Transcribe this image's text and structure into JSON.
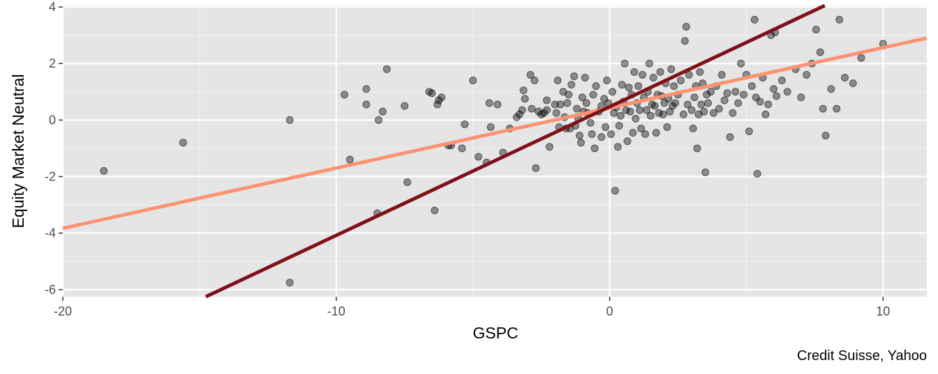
{
  "chart_data": {
    "type": "scatter",
    "xlabel": "GSPC",
    "ylabel": "Equity Market Neutral",
    "caption": "Credit Suisse, Yahoo",
    "xlim": [
      -20,
      11.6
    ],
    "ylim": [
      -6.25,
      4.05
    ],
    "x_ticks": [
      -20,
      -10,
      0,
      10
    ],
    "x_tick_labels": [
      "-20",
      "-10",
      "0",
      "10"
    ],
    "y_ticks": [
      -6,
      -4,
      -2,
      0,
      2,
      4
    ],
    "y_tick_labels": [
      "-6",
      "-4",
      "-2",
      "0",
      "2",
      "4"
    ],
    "grid": true,
    "colors": {
      "panel": "#e5e5e5",
      "grid_major": "#ffffff",
      "grid_minor": "#f2f2f2",
      "points": "#000000",
      "line_dark": "#7f1119",
      "line_light": "#fc9272"
    },
    "lines": [
      {
        "color": "#fc9272",
        "intercept": 0.43,
        "slope": 0.213
      },
      {
        "color": "#7f1119",
        "intercept": 0.47,
        "slope": 0.455
      }
    ],
    "points": [
      [
        -18.5,
        -1.8
      ],
      [
        -15.6,
        -0.8
      ],
      [
        -11.7,
        0.0
      ],
      [
        -11.7,
        -5.75
      ],
      [
        -9.7,
        0.9
      ],
      [
        -9.5,
        -1.4
      ],
      [
        -8.9,
        1.1
      ],
      [
        -8.9,
        0.55
      ],
      [
        -8.5,
        -3.3
      ],
      [
        -8.45,
        0.0
      ],
      [
        -8.3,
        0.3
      ],
      [
        -8.15,
        1.8
      ],
      [
        -7.5,
        0.5
      ],
      [
        -7.4,
        -2.2
      ],
      [
        -6.6,
        1.0
      ],
      [
        -6.5,
        0.95
      ],
      [
        -6.4,
        -3.2
      ],
      [
        -6.3,
        0.55
      ],
      [
        -6.25,
        0.7
      ],
      [
        -6.15,
        0.8
      ],
      [
        -5.9,
        -0.9
      ],
      [
        -5.8,
        -0.9
      ],
      [
        -5.4,
        -1.0
      ],
      [
        -5.3,
        -0.15
      ],
      [
        -5.0,
        1.4
      ],
      [
        -4.8,
        -1.3
      ],
      [
        -4.5,
        -1.5
      ],
      [
        -4.4,
        0.6
      ],
      [
        -4.35,
        -0.25
      ],
      [
        -4.1,
        0.55
      ],
      [
        -3.9,
        -1.15
      ],
      [
        -3.65,
        -0.3
      ],
      [
        -3.4,
        0.1
      ],
      [
        -3.3,
        0.2
      ],
      [
        -3.2,
        0.35
      ],
      [
        -3.15,
        1.05
      ],
      [
        -3.1,
        0.75
      ],
      [
        -2.9,
        1.6
      ],
      [
        -2.85,
        0.4
      ],
      [
        -2.75,
        1.4
      ],
      [
        -2.7,
        -1.7
      ],
      [
        -2.6,
        0.3
      ],
      [
        -2.5,
        0.2
      ],
      [
        -2.4,
        0.25
      ],
      [
        -2.3,
        0.35
      ],
      [
        -2.3,
        0.7
      ],
      [
        -2.2,
        -0.95
      ],
      [
        -2.0,
        0.55
      ],
      [
        -1.95,
        0.25
      ],
      [
        -1.9,
        1.4
      ],
      [
        -1.85,
        -0.25
      ],
      [
        -1.8,
        0.55
      ],
      [
        -1.7,
        1.0
      ],
      [
        -1.65,
        0.1
      ],
      [
        -1.6,
        -0.3
      ],
      [
        -1.55,
        0.6
      ],
      [
        -1.5,
        0.9
      ],
      [
        -1.45,
        -0.3
      ],
      [
        -1.4,
        1.25
      ],
      [
        -1.3,
        1.55
      ],
      [
        -1.25,
        -0.2
      ],
      [
        -1.2,
        0.4
      ],
      [
        -1.15,
        0.05
      ],
      [
        -1.1,
        -0.55
      ],
      [
        -1.05,
        -0.8
      ],
      [
        -1.0,
        0.8
      ],
      [
        -0.95,
        0.3
      ],
      [
        -0.9,
        1.5
      ],
      [
        -0.85,
        0.6
      ],
      [
        -0.8,
        0.25
      ],
      [
        -0.7,
        -0.1
      ],
      [
        -0.65,
        -0.5
      ],
      [
        -0.6,
        0.9
      ],
      [
        -0.55,
        -1.0
      ],
      [
        -0.5,
        1.2
      ],
      [
        -0.4,
        0.3
      ],
      [
        -0.3,
        0.5
      ],
      [
        -0.3,
        -0.6
      ],
      [
        -0.2,
        0.75
      ],
      [
        -0.15,
        -0.25
      ],
      [
        -0.1,
        1.4
      ],
      [
        -0.05,
        0.6
      ],
      [
        0.05,
        -0.5
      ],
      [
        0.1,
        1.0
      ],
      [
        0.15,
        0.25
      ],
      [
        0.2,
        -2.5
      ],
      [
        0.25,
        0.45
      ],
      [
        0.3,
        -0.95
      ],
      [
        0.35,
        -0.2
      ],
      [
        0.4,
        0.15
      ],
      [
        0.45,
        1.25
      ],
      [
        0.5,
        0.65
      ],
      [
        0.55,
        2.0
      ],
      [
        0.6,
        0.35
      ],
      [
        0.65,
        -0.75
      ],
      [
        0.7,
        1.15
      ],
      [
        0.75,
        0.3
      ],
      [
        0.8,
        0.9
      ],
      [
        0.85,
        -0.45
      ],
      [
        0.9,
        1.7
      ],
      [
        0.95,
        0.05
      ],
      [
        1.0,
        0.6
      ],
      [
        1.05,
        1.2
      ],
      [
        1.1,
        0.35
      ],
      [
        1.15,
        -0.3
      ],
      [
        1.2,
        1.6
      ],
      [
        1.25,
        0.8
      ],
      [
        1.3,
        -0.5
      ],
      [
        1.35,
        0.35
      ],
      [
        1.4,
        1.0
      ],
      [
        1.45,
        2.0
      ],
      [
        1.5,
        0.15
      ],
      [
        1.55,
        0.55
      ],
      [
        1.6,
        1.5
      ],
      [
        1.65,
        0.5
      ],
      [
        1.7,
        -0.45
      ],
      [
        1.75,
        0.9
      ],
      [
        1.8,
        0.25
      ],
      [
        1.85,
        1.7
      ],
      [
        1.9,
        0.85
      ],
      [
        1.95,
        0.2
      ],
      [
        2.0,
        0.6
      ],
      [
        2.05,
        1.3
      ],
      [
        2.1,
        -0.25
      ],
      [
        2.15,
        0.75
      ],
      [
        2.2,
        0.3
      ],
      [
        2.25,
        1.8
      ],
      [
        2.3,
        0.5
      ],
      [
        2.35,
        1.2
      ],
      [
        2.4,
        0.6
      ],
      [
        2.5,
        0.9
      ],
      [
        2.6,
        1.4
      ],
      [
        2.7,
        0.2
      ],
      [
        2.75,
        2.8
      ],
      [
        2.8,
        3.3
      ],
      [
        2.85,
        0.55
      ],
      [
        2.9,
        1.6
      ],
      [
        3.0,
        0.35
      ],
      [
        3.05,
        -0.3
      ],
      [
        3.1,
        0.8
      ],
      [
        3.15,
        1.2
      ],
      [
        3.2,
        -1.0
      ],
      [
        3.25,
        0.2
      ],
      [
        3.3,
        1.7
      ],
      [
        3.35,
        0.55
      ],
      [
        3.4,
        1.3
      ],
      [
        3.45,
        0.3
      ],
      [
        3.5,
        -1.85
      ],
      [
        3.55,
        0.9
      ],
      [
        3.6,
        0.6
      ],
      [
        3.7,
        1.0
      ],
      [
        3.8,
        0.25
      ],
      [
        3.9,
        1.2
      ],
      [
        4.0,
        0.4
      ],
      [
        4.1,
        1.6
      ],
      [
        4.2,
        0.7
      ],
      [
        4.3,
        0.95
      ],
      [
        4.4,
        -0.6
      ],
      [
        4.5,
        0.25
      ],
      [
        4.6,
        1.0
      ],
      [
        4.7,
        0.6
      ],
      [
        4.8,
        2.0
      ],
      [
        4.9,
        0.9
      ],
      [
        5.0,
        1.6
      ],
      [
        5.1,
        -0.4
      ],
      [
        5.2,
        1.2
      ],
      [
        5.3,
        3.55
      ],
      [
        5.35,
        0.8
      ],
      [
        5.4,
        -1.9
      ],
      [
        5.5,
        0.65
      ],
      [
        5.6,
        1.5
      ],
      [
        5.7,
        0.2
      ],
      [
        5.8,
        0.55
      ],
      [
        5.9,
        3.0
      ],
      [
        6.0,
        1.1
      ],
      [
        6.05,
        3.1
      ],
      [
        6.1,
        0.85
      ],
      [
        6.3,
        1.4
      ],
      [
        6.5,
        1.0
      ],
      [
        6.8,
        1.8
      ],
      [
        7.0,
        0.8
      ],
      [
        7.2,
        1.6
      ],
      [
        7.4,
        2.0
      ],
      [
        7.55,
        3.2
      ],
      [
        7.7,
        2.4
      ],
      [
        7.8,
        0.4
      ],
      [
        7.9,
        -0.55
      ],
      [
        8.1,
        1.1
      ],
      [
        8.3,
        0.4
      ],
      [
        8.4,
        3.55
      ],
      [
        8.6,
        1.5
      ],
      [
        8.9,
        1.3
      ],
      [
        9.2,
        2.2
      ],
      [
        10.0,
        2.7
      ]
    ]
  }
}
